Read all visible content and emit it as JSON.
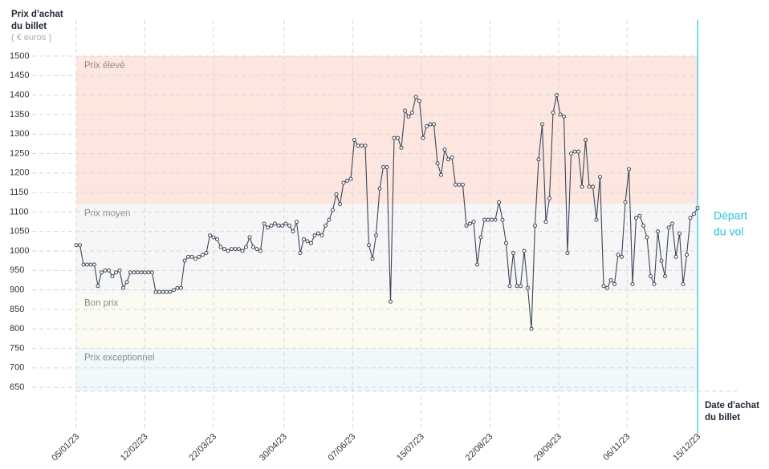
{
  "chart_data": {
    "type": "line",
    "y_label": [
      "Prix d'achat",
      "du billet"
    ],
    "y_unit": "( € euros )",
    "x_label": [
      "Date d'achat",
      "du billet"
    ],
    "departure": {
      "x": "15/12/23",
      "label": [
        "Départ",
        "du vol"
      ],
      "color": "#29c4dc"
    },
    "zones": [
      {
        "label": "Prix élevé",
        "range": [
          1120,
          1500
        ],
        "color": "#fde6df"
      },
      {
        "label": "Prix moyen",
        "range": [
          890,
          1120
        ],
        "color": "#f6f6f6"
      },
      {
        "label": "Bon prix",
        "range": [
          750,
          890
        ],
        "color": "#fbfbf1"
      },
      {
        "label": "Prix exceptionnel",
        "range": [
          640,
          750
        ],
        "color": "#f0f8fb"
      }
    ],
    "xlim": [
      "05/01/23",
      "15/12/23"
    ],
    "xticks": [
      "05/01/23",
      "12/02/23",
      "22/03/23",
      "30/04/23",
      "07/06/23",
      "15/07/23",
      "22/08/23",
      "29/09/23",
      "06/11/23",
      "15/12/23"
    ],
    "ylim": [
      640,
      1500
    ],
    "yticks": [
      650,
      700,
      750,
      800,
      850,
      900,
      950,
      1000,
      1050,
      1100,
      1150,
      1200,
      1250,
      1300,
      1350,
      1400,
      1450,
      1500
    ],
    "grid": true,
    "x": [
      "05/01/23",
      "07/01/23",
      "09/01/23",
      "11/01/23",
      "13/01/23",
      "15/01/23",
      "17/01/23",
      "19/01/23",
      "21/01/23",
      "23/01/23",
      "25/01/23",
      "27/01/23",
      "29/01/23",
      "31/01/23",
      "02/02/23",
      "04/02/23",
      "06/02/23",
      "08/02/23",
      "10/02/23",
      "12/02/23",
      "14/02/23",
      "16/02/23",
      "18/02/23",
      "20/02/23",
      "22/02/23",
      "24/02/23",
      "26/02/23",
      "28/02/23",
      "02/03/23",
      "04/03/23",
      "06/03/23",
      "08/03/23",
      "10/03/23",
      "12/03/23",
      "14/03/23",
      "16/03/23",
      "18/03/23",
      "20/03/23",
      "22/03/23",
      "24/03/23",
      "26/03/23",
      "28/03/23",
      "30/03/23",
      "01/04/23",
      "03/04/23",
      "05/04/23",
      "07/04/23",
      "09/04/23",
      "11/04/23",
      "13/04/23",
      "15/04/23",
      "17/04/23",
      "19/04/23",
      "21/04/23",
      "23/04/23",
      "25/04/23",
      "27/04/23",
      "29/04/23",
      "01/05/23",
      "03/05/23",
      "05/05/23",
      "07/05/23",
      "09/05/23",
      "11/05/23",
      "13/05/23",
      "15/05/23",
      "17/05/23",
      "19/05/23",
      "21/05/23",
      "23/05/23",
      "25/05/23",
      "27/05/23",
      "29/05/23",
      "31/05/23",
      "02/06/23",
      "04/06/23",
      "06/06/23",
      "08/06/23",
      "10/06/23",
      "12/06/23",
      "14/06/23",
      "16/06/23",
      "18/06/23",
      "20/06/23",
      "22/06/23",
      "24/06/23",
      "26/06/23",
      "28/06/23",
      "30/06/23",
      "02/07/23",
      "04/07/23",
      "06/07/23",
      "08/07/23",
      "10/07/23",
      "12/07/23",
      "14/07/23",
      "16/07/23",
      "18/07/23",
      "20/07/23",
      "22/07/23",
      "24/07/23",
      "26/07/23",
      "28/07/23",
      "30/07/23",
      "01/08/23",
      "03/08/23",
      "05/08/23",
      "07/08/23",
      "09/08/23",
      "11/08/23",
      "13/08/23",
      "15/08/23",
      "17/08/23",
      "19/08/23",
      "21/08/23",
      "23/08/23",
      "25/08/23",
      "27/08/23",
      "29/08/23",
      "31/08/23",
      "02/09/23",
      "04/09/23",
      "06/09/23",
      "08/09/23",
      "10/09/23",
      "12/09/23",
      "14/09/23",
      "16/09/23",
      "18/09/23",
      "20/09/23",
      "22/09/23",
      "24/09/23",
      "26/09/23",
      "28/09/23",
      "30/09/23",
      "02/10/23",
      "04/10/23",
      "06/10/23",
      "08/10/23",
      "10/10/23",
      "12/10/23",
      "14/10/23",
      "16/10/23",
      "18/10/23",
      "20/10/23",
      "22/10/23",
      "24/10/23",
      "26/10/23",
      "28/10/23",
      "30/10/23",
      "01/11/23",
      "03/11/23",
      "05/11/23",
      "07/11/23",
      "09/11/23",
      "11/11/23",
      "13/11/23",
      "15/11/23",
      "17/11/23",
      "19/11/23",
      "21/11/23",
      "23/11/23",
      "25/11/23",
      "27/11/23",
      "29/11/23",
      "01/12/23",
      "03/12/23",
      "05/12/23",
      "07/12/23",
      "09/12/23",
      "11/12/23",
      "13/12/23",
      "15/12/23"
    ],
    "series": [
      {
        "name": "Prix",
        "color": "#3b4658",
        "values": [
          1015,
          1015,
          965,
          965,
          965,
          965,
          910,
          945,
          950,
          950,
          935,
          945,
          950,
          905,
          920,
          945,
          945,
          945,
          945,
          945,
          945,
          945,
          895,
          895,
          895,
          895,
          895,
          900,
          905,
          905,
          975,
          985,
          985,
          980,
          985,
          990,
          995,
          1040,
          1035,
          1030,
          1010,
          1005,
          1000,
          1005,
          1005,
          1005,
          1000,
          1010,
          1035,
          1010,
          1005,
          1000,
          1070,
          1060,
          1065,
          1070,
          1065,
          1065,
          1070,
          1065,
          1050,
          1075,
          995,
          1030,
          1025,
          1020,
          1040,
          1045,
          1040,
          1065,
          1080,
          1105,
          1145,
          1120,
          1175,
          1180,
          1185,
          1285,
          1270,
          1270,
          1270,
          1015,
          980,
          1040,
          1160,
          1215,
          1215,
          870,
          1290,
          1290,
          1265,
          1360,
          1345,
          1355,
          1395,
          1385,
          1290,
          1320,
          1325,
          1325,
          1225,
          1195,
          1260,
          1235,
          1240,
          1170,
          1170,
          1170,
          1065,
          1070,
          1075,
          965,
          1035,
          1080,
          1080,
          1080,
          1080,
          1125,
          1080,
          1020,
          910,
          995,
          910,
          910,
          1000,
          905,
          800,
          1065,
          1235,
          1325,
          1075,
          1135,
          1355,
          1400,
          1350,
          1345,
          995,
          1250,
          1255,
          1255,
          1165,
          1285,
          1165,
          1165,
          1080,
          1190,
          910,
          905,
          925,
          915,
          990,
          985,
          1125,
          1210,
          915,
          1085,
          1090,
          1065,
          1035,
          935,
          915,
          1050,
          975,
          935,
          1060,
          1070,
          985,
          1045,
          915,
          990,
          1085,
          1095,
          1110
        ]
      }
    ]
  }
}
